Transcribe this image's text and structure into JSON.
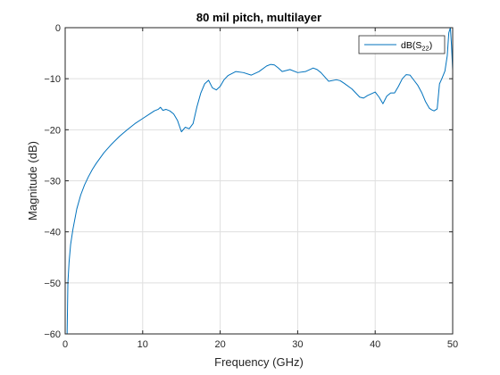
{
  "chart_data": {
    "type": "line",
    "title": "80 mil pitch, multilayer",
    "xlabel": "Frequency (GHz)",
    "ylabel": "Magnitude (dB)",
    "xlim": [
      0,
      50
    ],
    "ylim": [
      -60,
      0
    ],
    "xticks": [
      0,
      10,
      20,
      30,
      40,
      50
    ],
    "yticks": [
      0,
      -10,
      -20,
      -30,
      -40,
      -50,
      -60
    ],
    "xtick_labels": [
      "0",
      "10",
      "20",
      "30",
      "40",
      "50"
    ],
    "ytick_labels": [
      "0",
      "−10",
      "−20",
      "−30",
      "−40",
      "−50",
      "−60"
    ],
    "grid": true,
    "legend_position": "top-right",
    "series": [
      {
        "name": "dB(S22)",
        "name_base": "dB(S",
        "name_sub": "22",
        "name_end": ")",
        "color": "#0072bd",
        "x": [
          0.25,
          0.35,
          0.5,
          0.7,
          1.0,
          1.5,
          2.0,
          2.5,
          3.0,
          3.5,
          4.0,
          5.0,
          6.0,
          7.0,
          8.0,
          9.0,
          10.0,
          11.0,
          11.5,
          12.0,
          12.3,
          12.6,
          13.0,
          13.5,
          14.0,
          14.5,
          15.0,
          15.5,
          16.0,
          16.5,
          17.0,
          17.5,
          18.0,
          18.5,
          19.0,
          19.5,
          20.0,
          20.5,
          21.0,
          22.0,
          23.0,
          24.0,
          25.0,
          26.0,
          26.5,
          27.0,
          27.5,
          28.0,
          29.0,
          30.0,
          31.0,
          32.0,
          32.5,
          33.0,
          34.0,
          35.0,
          35.5,
          36.0,
          37.0,
          38.0,
          38.5,
          39.0,
          40.0,
          40.5,
          41.0,
          41.5,
          42.0,
          42.5,
          43.0,
          43.5,
          44.0,
          44.5,
          45.0,
          45.5,
          46.0,
          46.5,
          47.0,
          47.3,
          47.6,
          48.0,
          48.3,
          48.6,
          49.0,
          49.3,
          49.5,
          49.7,
          49.85,
          50.0
        ],
        "y": [
          -60.0,
          -50.0,
          -46.0,
          -42.5,
          -39.5,
          -35.5,
          -32.8,
          -30.8,
          -29.2,
          -27.8,
          -26.6,
          -24.5,
          -22.8,
          -21.3,
          -20.0,
          -18.8,
          -17.8,
          -16.8,
          -16.3,
          -16.0,
          -15.6,
          -16.2,
          -16.0,
          -16.3,
          -16.9,
          -18.2,
          -20.4,
          -19.5,
          -19.8,
          -18.8,
          -15.5,
          -12.8,
          -11.0,
          -10.3,
          -11.8,
          -12.2,
          -11.5,
          -10.2,
          -9.4,
          -8.6,
          -8.8,
          -9.3,
          -8.6,
          -7.5,
          -7.2,
          -7.3,
          -7.9,
          -8.6,
          -8.2,
          -8.8,
          -8.6,
          -7.9,
          -8.2,
          -8.8,
          -10.5,
          -10.2,
          -10.4,
          -10.9,
          -12.0,
          -13.6,
          -13.8,
          -13.3,
          -12.6,
          -13.6,
          -14.9,
          -13.4,
          -12.8,
          -12.8,
          -11.5,
          -10.0,
          -9.2,
          -9.3,
          -10.3,
          -11.3,
          -12.7,
          -14.5,
          -15.8,
          -16.1,
          -16.3,
          -15.9,
          -11.0,
          -10.0,
          -8.5,
          -5.5,
          -1.0,
          0.0,
          -3.5,
          -8.3
        ]
      }
    ]
  }
}
